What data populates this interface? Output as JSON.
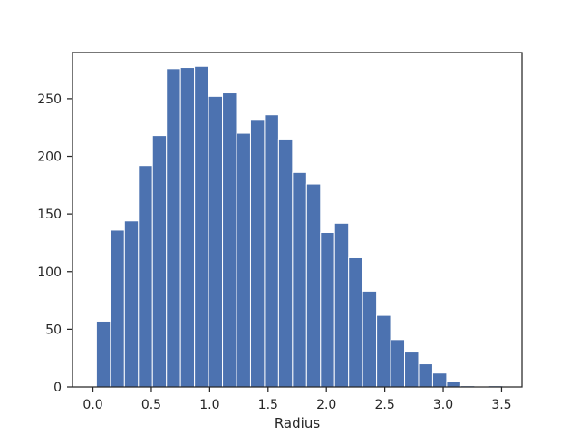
{
  "chart_data": {
    "type": "bar",
    "subtype": "histogram",
    "title": "",
    "xlabel": "Radius",
    "ylabel": "",
    "xlim": [
      -0.175,
      3.675
    ],
    "ylim": [
      0,
      290
    ],
    "xticks": [
      0.0,
      0.5,
      1.0,
      1.5,
      2.0,
      2.5,
      3.0,
      3.5
    ],
    "xtick_labels": [
      "0.0",
      "0.5",
      "1.0",
      "1.5",
      "2.0",
      "2.5",
      "3.0",
      "3.5"
    ],
    "yticks": [
      0,
      50,
      100,
      150,
      200,
      250
    ],
    "ytick_labels": [
      "0",
      "50",
      "100",
      "150",
      "200",
      "250"
    ],
    "bin_edges": [
      0.03,
      0.15,
      0.27,
      0.39,
      0.51,
      0.63,
      0.75,
      0.87,
      0.99,
      1.11,
      1.23,
      1.35,
      1.47,
      1.59,
      1.71,
      1.83,
      1.95,
      2.07,
      2.19,
      2.31,
      2.43,
      2.55,
      2.67,
      2.79,
      2.91,
      3.03,
      3.15,
      3.27,
      3.39,
      3.51
    ],
    "counts": [
      57,
      136,
      144,
      192,
      218,
      276,
      277,
      278,
      252,
      255,
      220,
      232,
      236,
      215,
      186,
      176,
      134,
      142,
      112,
      83,
      62,
      41,
      31,
      20,
      12,
      5,
      1,
      0,
      1
    ],
    "bar_color": "#4c72b0",
    "edge_color": "#ffffff",
    "grid": false,
    "legend": "none"
  }
}
